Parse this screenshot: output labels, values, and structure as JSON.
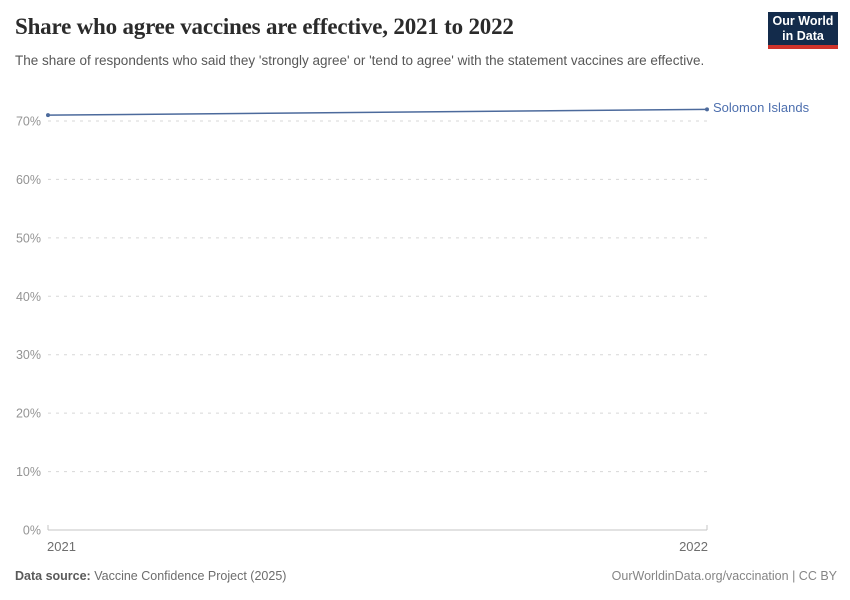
{
  "header": {
    "title": "Share who agree vaccines are effective, 2021 to 2022",
    "subtitle": "The share of respondents who said they 'strongly agree' or 'tend to agree' with the statement vaccines are effective.",
    "logo": {
      "line1": "Our World",
      "line2": "in Data",
      "bg_color": "#132b4b",
      "accent_color": "#cf332b"
    }
  },
  "chart_data": {
    "type": "line",
    "title": "Share who agree vaccines are effective, 2021 to 2022",
    "x": [
      "2021",
      "2022"
    ],
    "series": [
      {
        "name": "Solomon Islands",
        "values": [
          71,
          72
        ],
        "color": "#4c6a9c",
        "label_color": "#4d6fae"
      }
    ],
    "xlabel": "",
    "ylabel": "",
    "ylim": [
      0,
      70
    ],
    "yticks": [
      0,
      10,
      20,
      30,
      40,
      50,
      60,
      70
    ],
    "ytick_suffix": "%",
    "grid": "dashed-horizontal",
    "legend_position": "right-of-line-end"
  },
  "footer": {
    "source_label": "Data source:",
    "source_value": " Vaccine Confidence Project (2025)",
    "url": "OurWorldinData.org/vaccination",
    "separator": " | ",
    "license": "CC BY"
  }
}
